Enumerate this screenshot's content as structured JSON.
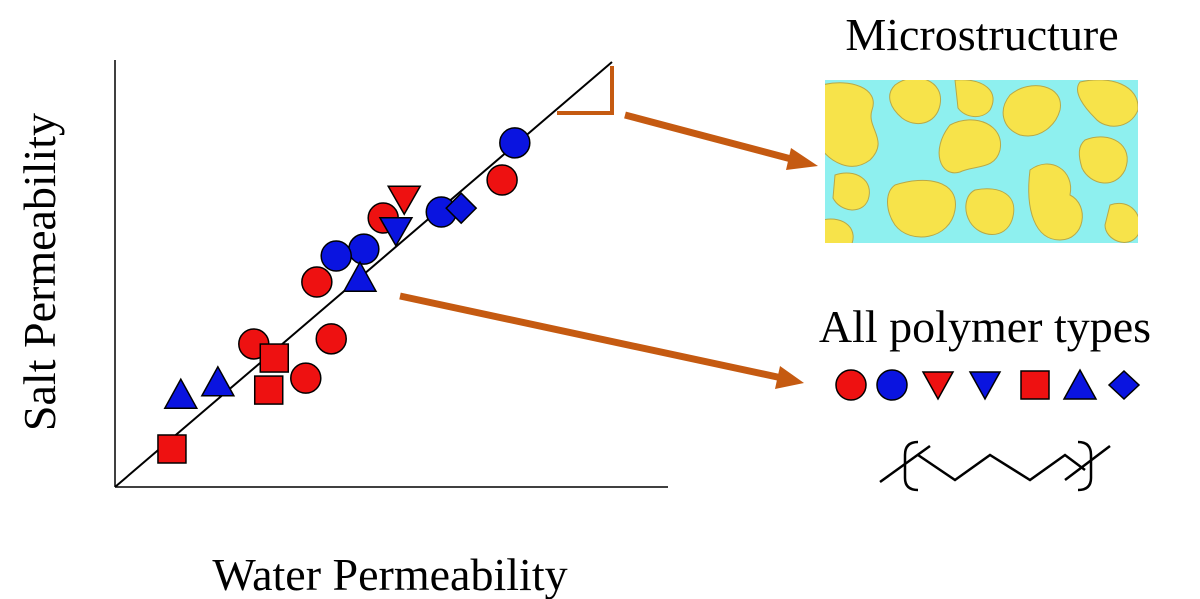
{
  "chart_data": {
    "type": "scatter",
    "xlabel": "Water Permeability",
    "ylabel": "Salt Permeability",
    "xlim": [
      0,
      100
    ],
    "ylim": [
      0,
      100
    ],
    "series": [
      {
        "marker": "circle",
        "color": "#ee1111",
        "x": [
          70.0,
          48.5,
          36.5,
          25.1,
          39.1,
          34.5
        ],
        "y": [
          71.9,
          63.0,
          48.0,
          33.5,
          34.7,
          25.5
        ]
      },
      {
        "marker": "circle",
        "color": "#0a14e0",
        "x": [
          72.3,
          59.0,
          45.0,
          40.0
        ],
        "y": [
          80.6,
          64.4,
          55.7,
          54.1
        ]
      },
      {
        "marker": "triangle-down",
        "color": "#ee1111",
        "x": [
          52.3
        ],
        "y": [
          67.4
        ]
      },
      {
        "marker": "triangle-down",
        "color": "#0a14e0",
        "x": [
          50.8
        ],
        "y": [
          60.0
        ]
      },
      {
        "marker": "square",
        "color": "#ee1111",
        "x": [
          28.8,
          27.8,
          10.3
        ],
        "y": [
          30.2,
          22.7,
          8.9
        ]
      },
      {
        "marker": "triangle-up",
        "color": "#0a14e0",
        "x": [
          11.9,
          18.6,
          44.3
        ],
        "y": [
          21.5,
          24.4,
          48.9
        ]
      },
      {
        "marker": "diamond",
        "color": "#0a14e0",
        "x": [
          62.6
        ],
        "y": [
          65.3
        ]
      }
    ]
  },
  "annotations": [
    "Microstructure",
    "All polymer types"
  ]
}
